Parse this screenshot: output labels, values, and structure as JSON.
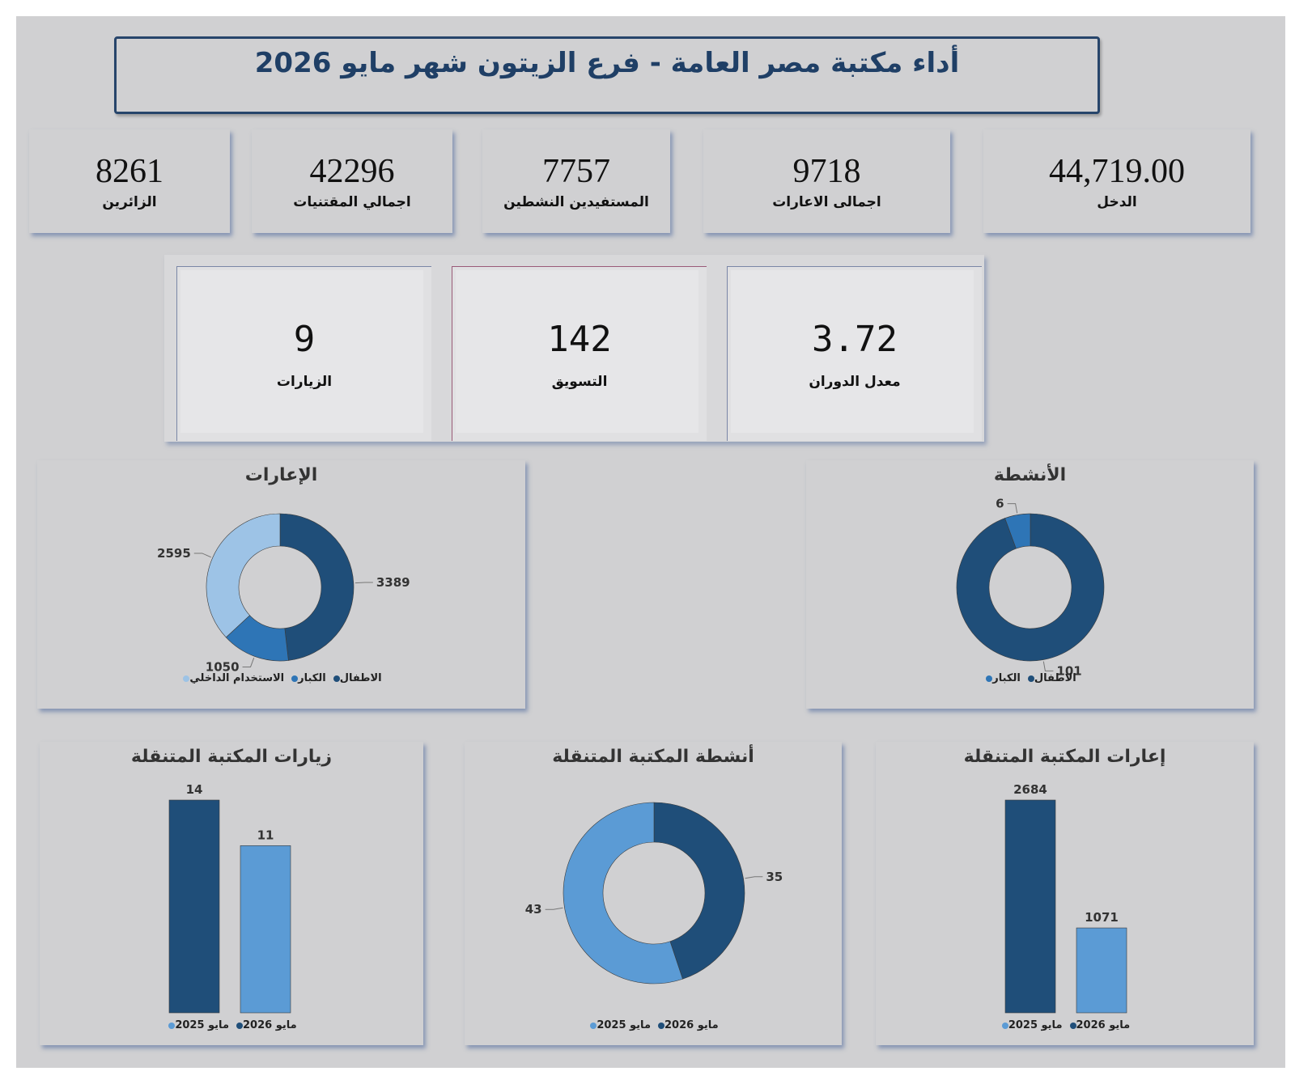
{
  "page_title": "أداء مكتبة مصر العامة - فرع الزيتون شهر مايو 2026",
  "kpis": [
    {
      "value": "44,719.00",
      "label": "الدخل"
    },
    {
      "value": "9718",
      "label": "اجمالى الاعارات"
    },
    {
      "value": "7757",
      "label": "المستفيدين النشطين"
    },
    {
      "value": "42296",
      "label": "اجمالي المقتنيات"
    },
    {
      "value": "8261",
      "label": "الزائرين"
    }
  ],
  "metrics": [
    {
      "value": "3.72",
      "label": "معدل الدوران"
    },
    {
      "value": "142",
      "label": "التسويق"
    },
    {
      "value": "9",
      "label": "الزيارات"
    }
  ],
  "colors": {
    "dark": "#1f4e79",
    "mid": "#2e75b6",
    "light": "#9dc3e6",
    "bright": "#5b9bd5"
  },
  "chart_data": [
    {
      "type": "pie",
      "title": "الإعارات",
      "categories": [
        "الاطفال",
        "الكبار",
        "الاستخدام الداخلي"
      ],
      "values": [
        3389,
        1050,
        2595
      ],
      "colors": [
        "#1f4e79",
        "#2e75b6",
        "#9dc3e6"
      ],
      "donut": true,
      "legend": "bottom"
    },
    {
      "type": "pie",
      "title": "الأنشطة",
      "categories": [
        "الاطفال",
        "الكبار"
      ],
      "values": [
        101,
        6
      ],
      "colors": [
        "#1f4e79",
        "#2e75b6"
      ],
      "donut": true,
      "legend": "bottom"
    },
    {
      "type": "bar",
      "title": "زيارات المكتبة المتنقلة",
      "categories": [
        "مايو 2026",
        "مايو 2025"
      ],
      "values": [
        14,
        11
      ],
      "colors": [
        "#1f4e79",
        "#5b9bd5"
      ],
      "legend": "bottom"
    },
    {
      "type": "pie",
      "title": "أنشطة المكتبة المتنقلة",
      "categories": [
        "مايو 2026",
        "مايو 2025"
      ],
      "values": [
        35,
        43
      ],
      "colors": [
        "#1f4e79",
        "#5b9bd5"
      ],
      "donut": true,
      "legend": "bottom"
    },
    {
      "type": "bar",
      "title": "إعارات المكتبة المتنقلة",
      "categories": [
        "مايو 2026",
        "مايو 2025"
      ],
      "values": [
        2684,
        1071
      ],
      "colors": [
        "#1f4e79",
        "#5b9bd5"
      ],
      "legend": "bottom"
    }
  ]
}
